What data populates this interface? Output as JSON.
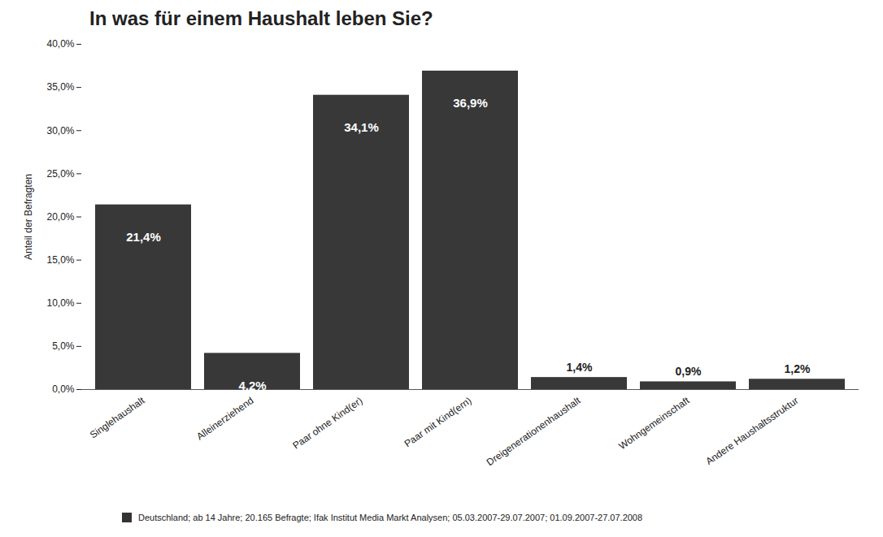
{
  "chart_data": {
    "type": "bar",
    "title": "In was für einem Haushalt leben Sie?",
    "y_label": "Anteil der Befragten",
    "caption": "Deutschland; ab 14 Jahre; 20.165 Befragte; Ifak Institut Media Markt Analysen; 05.03.2007-29.07.2007; 01.09.2007-27.07.2008",
    "categories": [
      "Singlehaushalt",
      "Alleinerziehend",
      "Paar ohne Kind(er)",
      "Paar mit Kind(ern)",
      "Dreigenerationenhaushalt",
      "Wohngemeinschaft",
      "Andere Haushaltsstruktur"
    ],
    "values": [
      21.4,
      4.2,
      34.1,
      36.9,
      1.4,
      0.9,
      1.2
    ],
    "value_labels": [
      "21,4%",
      "4,2%",
      "34,1%",
      "36,9%",
      "1,4%",
      "0,9%",
      "1,2%"
    ],
    "color": "#383838",
    "ylim": [
      0,
      40
    ],
    "yticks": [
      {
        "value": 0,
        "label": "0,0%"
      },
      {
        "value": 5,
        "label": "5,0%"
      },
      {
        "value": 10,
        "label": "10,0%"
      },
      {
        "value": 15,
        "label": "15,0%"
      },
      {
        "value": 20,
        "label": "20,0%"
      },
      {
        "value": 25,
        "label": "25,0%"
      },
      {
        "value": 30,
        "label": "30,0%"
      },
      {
        "value": 35,
        "label": "35,0%"
      },
      {
        "value": 40,
        "label": "40,0%"
      }
    ],
    "grid": false,
    "data_labels": true
  }
}
